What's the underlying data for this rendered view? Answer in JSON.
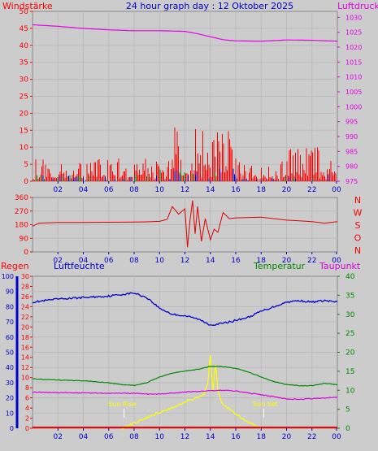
{
  "header": {
    "left_label": "Windstärke",
    "title": "24 hour graph day : 12 Oktober 2025",
    "right_label": "Luftdruck"
  },
  "panel3_labels": {
    "regen": "Regen",
    "luftfeuchte": "Luftfeuchte",
    "temperatur": "Temperatur",
    "taupunkt": "Taupunkt"
  },
  "sun_labels": {
    "rise": "Sun Rise",
    "set": "Sun Set"
  },
  "compass": [
    "N",
    "W",
    "S",
    "O",
    "N"
  ],
  "time_ticks": [
    "02",
    "04",
    "06",
    "08",
    "10",
    "12",
    "14",
    "16",
    "18",
    "20",
    "22",
    "00"
  ],
  "colors": {
    "background": "#cccccc",
    "wind": "#ff0000",
    "gust_blue": "#0000cc",
    "gust_green": "#008800",
    "pressure": "#e600e6",
    "direction": "#dd0000",
    "humidity": "#0000cc",
    "temperature": "#008800",
    "dewpoint": "#dd00dd",
    "solar": "#ffff00",
    "rain": "#ff0000",
    "grid": "#bbbbbb"
  },
  "chart_data": [
    {
      "type": "line",
      "panel": "wind_pressure",
      "left_axis": {
        "label": "Windstärke",
        "ylim": [
          0,
          50
        ],
        "ticks": [
          0,
          5,
          10,
          15,
          20,
          25,
          30,
          35,
          40,
          45,
          50
        ]
      },
      "right_axis": {
        "label": "Luftdruck",
        "ylim": [
          975,
          1032
        ],
        "ticks": [
          975,
          980,
          985,
          990,
          995,
          1000,
          1005,
          1010,
          1015,
          1020,
          1025,
          1030
        ]
      },
      "x_ticks": [
        "02",
        "04",
        "06",
        "08",
        "10",
        "12",
        "14",
        "16",
        "18",
        "20",
        "22",
        "00"
      ],
      "series": [
        {
          "name": "Luftdruck",
          "axis": "right",
          "x": [
            0,
            2,
            4,
            6,
            8,
            10,
            12,
            13,
            14,
            15,
            16,
            18,
            20,
            22,
            24
          ],
          "values": [
            1027.5,
            1027.0,
            1026.3,
            1025.8,
            1025.5,
            1025.5,
            1025.3,
            1024.5,
            1023.5,
            1022.5,
            1022.1,
            1022.0,
            1022.4,
            1022.3,
            1022.0
          ]
        }
      ]
    },
    {
      "type": "line",
      "panel": "wind_direction",
      "left_axis": {
        "ylim": [
          0,
          360
        ],
        "ticks": [
          0,
          90,
          180,
          270,
          360
        ]
      },
      "right_labels": [
        "N",
        "W",
        "S",
        "O",
        "N"
      ],
      "x_ticks": [
        "02",
        "04",
        "06",
        "08",
        "10",
        "12",
        "14",
        "16",
        "18",
        "20",
        "22",
        "00"
      ],
      "series": [
        {
          "name": "direction",
          "x": [
            0,
            0.5,
            2,
            4,
            6,
            8,
            9,
            10,
            10.6,
            11,
            11.5,
            12,
            12.2,
            12.4,
            12.6,
            12.8,
            13,
            13.3,
            13.6,
            14,
            14.3,
            14.6,
            15,
            15.5,
            16,
            18,
            20,
            21,
            22,
            23,
            24
          ],
          "values": [
            170,
            190,
            195,
            195,
            196,
            197,
            199,
            202,
            215,
            300,
            250,
            285,
            30,
            210,
            340,
            120,
            300,
            70,
            220,
            80,
            150,
            130,
            260,
            220,
            225,
            230,
            210,
            205,
            200,
            190,
            200
          ]
        }
      ]
    },
    {
      "type": "line",
      "panel": "climate",
      "axes": {
        "luftfeuchte": {
          "ylim": [
            0,
            100
          ],
          "ticks": [
            0,
            10,
            20,
            30,
            40,
            50,
            60,
            70,
            80,
            90,
            100
          ]
        },
        "regen": {
          "ylim": [
            0,
            30
          ],
          "ticks": [
            0,
            2,
            4,
            6,
            8,
            10,
            12,
            14,
            16,
            18,
            20,
            22,
            24,
            26,
            28,
            30
          ]
        },
        "temperatur": {
          "ylim": [
            0,
            40
          ],
          "ticks": [
            0,
            5,
            10,
            15,
            20,
            25,
            30,
            35,
            40
          ]
        }
      },
      "x_ticks": [
        "02",
        "04",
        "06",
        "08",
        "10",
        "12",
        "14",
        "16",
        "18",
        "20",
        "22",
        "00"
      ],
      "series": [
        {
          "name": "Luftfeuchte",
          "axis": "luftfeuchte",
          "x": [
            0,
            2,
            4,
            6,
            7,
            8,
            9,
            10,
            11,
            12,
            13,
            14,
            15,
            16,
            17,
            18,
            19,
            20,
            21,
            22,
            23,
            24
          ],
          "values": [
            83,
            85,
            86,
            87,
            88,
            89,
            86,
            79,
            75,
            74,
            72,
            68,
            69,
            71,
            73,
            77,
            80,
            83,
            84,
            83,
            84,
            83
          ]
        },
        {
          "name": "Temperatur",
          "axis": "temperatur",
          "x": [
            0,
            2,
            4,
            6,
            7,
            8,
            9,
            10,
            11,
            12,
            13,
            14,
            15,
            16,
            17,
            18,
            19,
            20,
            21,
            22,
            23,
            24
          ],
          "values": [
            13,
            12.7,
            12.5,
            12,
            11.5,
            11.3,
            12,
            13.5,
            14.5,
            15,
            15.5,
            16.3,
            16.2,
            15.8,
            14.8,
            13.5,
            12.3,
            11.5,
            11.2,
            11.2,
            11.8,
            11.5
          ]
        },
        {
          "name": "Taupunkt",
          "axis": "temperatur",
          "x": [
            0,
            2,
            4,
            6,
            8,
            9,
            10,
            12,
            14,
            15,
            16,
            17,
            18,
            19,
            20,
            21,
            22,
            23,
            24
          ],
          "values": [
            9.5,
            9.4,
            9.3,
            9.2,
            9.2,
            9.0,
            9.0,
            9.5,
            9.9,
            10.0,
            9.8,
            9.3,
            8.8,
            8.3,
            7.7,
            7.6,
            7.8,
            8.0,
            8.2
          ]
        },
        {
          "name": "solar",
          "axis": "temperatur",
          "x": [
            7,
            7.5,
            8,
            8.5,
            9,
            9.5,
            10,
            10.5,
            11,
            11.5,
            12,
            12.5,
            13,
            13.5,
            13.8,
            14,
            14.2,
            14.4,
            14.6,
            14.8,
            15,
            15.5,
            16,
            16.5,
            17,
            17.5,
            18
          ],
          "values": [
            0,
            0.6,
            1.4,
            2.0,
            2.8,
            3.5,
            4.2,
            4.8,
            5.5,
            6.2,
            7.0,
            7.6,
            8.2,
            9.0,
            12.0,
            19.0,
            9.5,
            17.0,
            10.0,
            7.5,
            6.2,
            5.0,
            3.8,
            2.6,
            1.6,
            0.8,
            0
          ]
        },
        {
          "name": "Regen",
          "axis": "regen",
          "x": [
            0,
            24
          ],
          "values": [
            0,
            0
          ]
        }
      ],
      "sun_rise_hour": 7.2,
      "sun_set_hour": 18.2
    }
  ]
}
